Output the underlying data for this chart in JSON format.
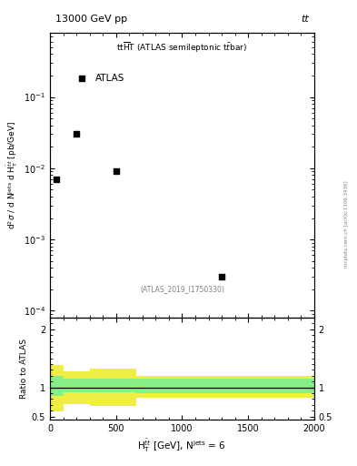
{
  "title_left": "13000 GeV pp",
  "title_right": "tt",
  "annotation": "(ATLAS_2019_I1750330)",
  "ylabel_ratio": "Ratio to ATLAS",
  "data_x": [
    50,
    200,
    500,
    1300
  ],
  "data_y": [
    0.007,
    0.03,
    0.009,
    0.0003
  ],
  "ylim_main": [
    8e-05,
    0.8
  ],
  "ylim_ratio": [
    0.45,
    2.2
  ],
  "xbins": [
    0,
    100,
    300,
    650,
    2000
  ],
  "ratio_green_lo": [
    0.85,
    0.92,
    0.92,
    0.9
  ],
  "ratio_green_hi": [
    1.2,
    1.15,
    1.15,
    1.15
  ],
  "ratio_yellow_lo": [
    0.58,
    0.72,
    0.68,
    0.83
  ],
  "ratio_yellow_hi": [
    1.38,
    1.28,
    1.32,
    1.2
  ],
  "color_green": "#88ee88",
  "color_yellow": "#eeee44",
  "marker_color": "black",
  "side_text": "mcplots.cern.ch [arXiv:1306.3436]"
}
